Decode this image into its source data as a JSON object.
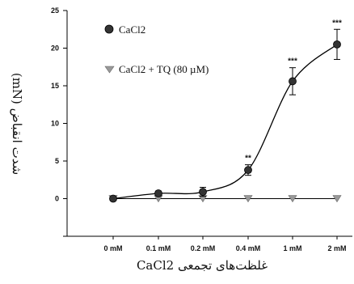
{
  "chart_data": {
    "type": "line",
    "categories": [
      "0 mM",
      "0.1 mM",
      "0.2 mM",
      "0.4 mM",
      "1 mM",
      "2 mM"
    ],
    "ylim": [
      -5,
      25
    ],
    "yticks": [
      -5,
      0,
      5,
      10,
      15,
      20,
      25
    ],
    "ytick_labels": [
      "",
      "0",
      "5",
      "10",
      "15",
      "20",
      "25"
    ],
    "xlabel": "غلظت‌های تجمعی CaCl2",
    "ylabel": "شدت انقباض (mN)",
    "legend_position": "top-left",
    "series": [
      {
        "name": "CaCl2",
        "marker": "circle",
        "color": "#333333",
        "fit": "sigmoid",
        "values": [
          0.0,
          0.7,
          0.9,
          3.8,
          15.6,
          20.5
        ],
        "errors": [
          0.2,
          0.3,
          0.6,
          0.7,
          1.8,
          2.0
        ],
        "significance": [
          "",
          "",
          "",
          "**",
          "***",
          "***"
        ]
      },
      {
        "name": "CaCl2 + TQ (80 µM)",
        "marker": "triangle-down",
        "color": "#999999",
        "fit": "line",
        "values": [
          0,
          0,
          0,
          0,
          0,
          0
        ],
        "errors": [
          0,
          0,
          0,
          0,
          0,
          0
        ],
        "significance": [
          "",
          "",
          "",
          "",
          "",
          ""
        ]
      }
    ]
  }
}
